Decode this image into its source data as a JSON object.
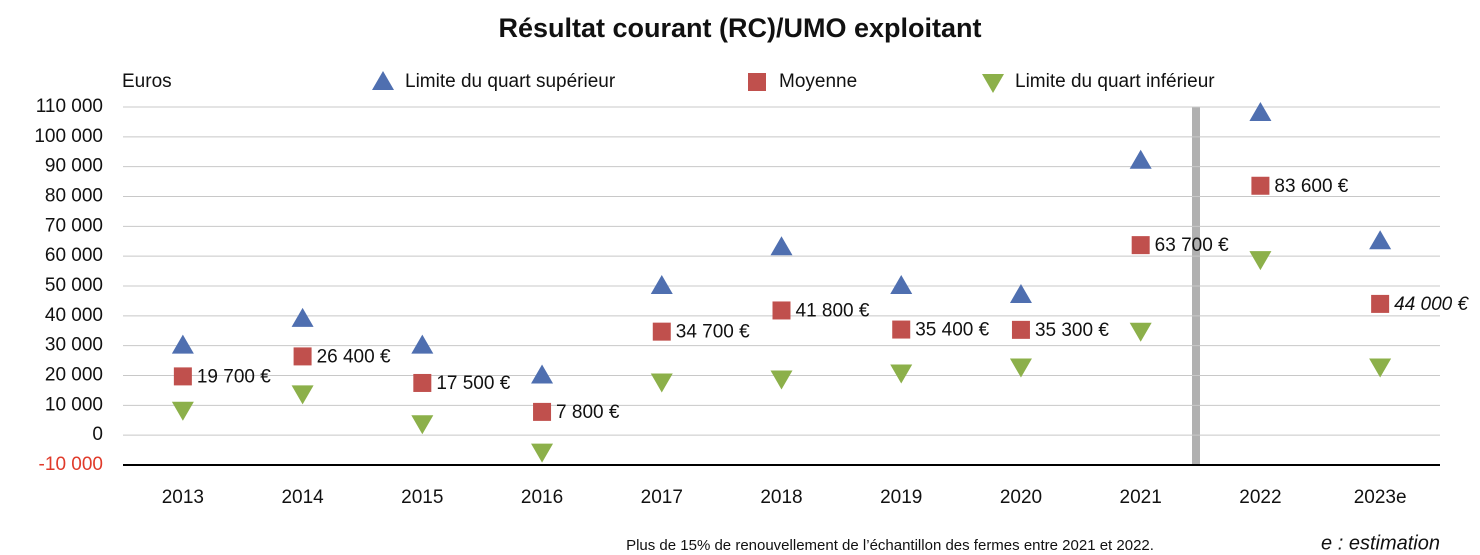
{
  "chart_data": {
    "type": "scatter",
    "title": "Résultat courant (RC)/UMO exploitant",
    "y_label": "Euros",
    "footnote": "Plus de 15% de renouvellement de l’échantillon des fermes entre 2021 et 2022.",
    "annotation": "e : estimation",
    "categories": [
      "2013",
      "2014",
      "2015",
      "2016",
      "2017",
      "2018",
      "2019",
      "2020",
      "2021",
      "2022",
      "2023e"
    ],
    "ylim": [
      -10000,
      110000
    ],
    "yticks": [
      {
        "value": -10000,
        "label": "-10 000"
      },
      0,
      {
        "value": 10000,
        "label": "10 000"
      },
      {
        "value": 20000,
        "label": "20 000"
      },
      {
        "value": 30000,
        "label": "30 000"
      },
      {
        "value": 40000,
        "label": "40 000"
      },
      {
        "value": 50000,
        "label": "50 000"
      },
      {
        "value": 60000,
        "label": "60 000"
      },
      {
        "value": 70000,
        "label": "70 000"
      },
      {
        "value": 80000,
        "label": "80 000"
      },
      {
        "value": 90000,
        "label": "90 000"
      },
      {
        "value": 100000,
        "label": "100 000"
      },
      {
        "value": 110000,
        "label": "110 000"
      }
    ],
    "grid": true,
    "series": [
      {
        "name": "Limite du quart supérieur",
        "color": "#4f6fb0",
        "marker": "triangle-up",
        "values": [
          30000,
          39000,
          30000,
          20000,
          50000,
          63000,
          50000,
          47000,
          92000,
          108000,
          65000
        ]
      },
      {
        "name": "Moyenne",
        "color": "#c0504d",
        "marker": "square",
        "values": [
          19700,
          26400,
          17500,
          7800,
          34700,
          41800,
          35400,
          35300,
          63700,
          83600,
          44000
        ],
        "value_labels": [
          "19 700 €",
          "26 400 €",
          "17 500 €",
          "7 800 €",
          "34 700 €",
          "41 800 €",
          "35 400 €",
          "35 300 €",
          "63 700 €",
          "83 600 €",
          "44 000 €"
        ]
      },
      {
        "name": "Limite du quart inférieur",
        "color": "#8cb04a",
        "marker": "triangle-down",
        "values": [
          8500,
          14000,
          4000,
          -5500,
          18000,
          19000,
          21000,
          23000,
          35000,
          59000,
          23000
        ]
      }
    ]
  }
}
